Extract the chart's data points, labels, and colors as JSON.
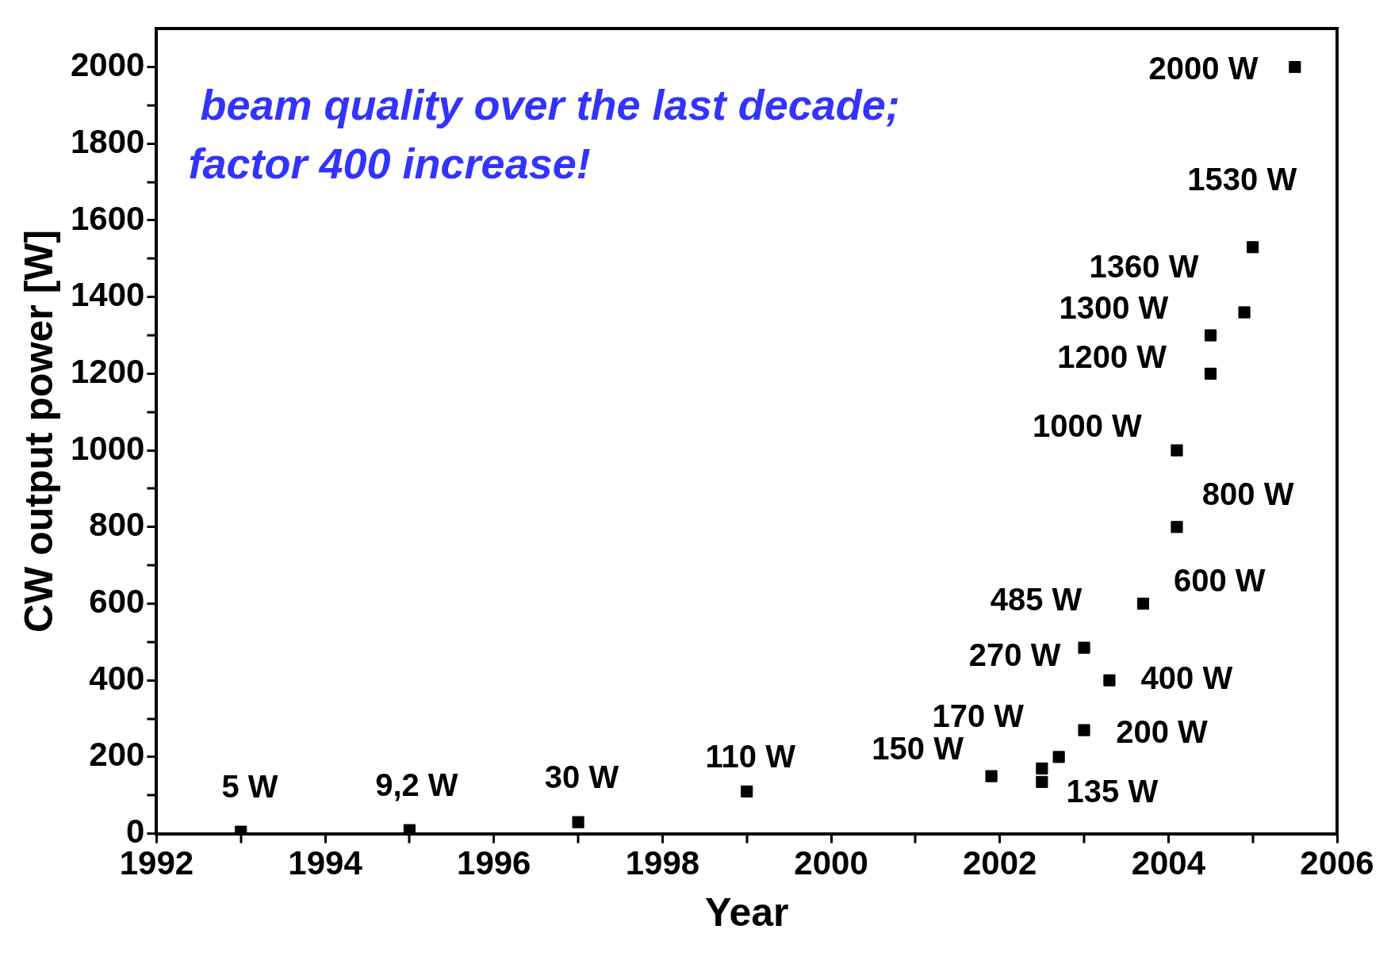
{
  "chart_data": {
    "type": "scatter",
    "xlabel": "Year",
    "ylabel": "CW output power [W]",
    "annotations": [
      " beam quality over the last decade;",
      "factor 400 increase!"
    ],
    "x": [
      1993,
      1995,
      1997,
      1999,
      2001.9,
      2002.5,
      2002.5,
      2002.7,
      2003,
      2003,
      2003.3,
      2003.7,
      2004.1,
      2004.1,
      2004.5,
      2004.5,
      2004.9,
      2005,
      2005.5
    ],
    "values": [
      5,
      9.2,
      30,
      110,
      150,
      170,
      135,
      200,
      270,
      485,
      400,
      600,
      800,
      1000,
      1200,
      1300,
      1360,
      1530,
      2000
    ],
    "value_labels": [
      "5 W",
      "9,2 W",
      "30 W",
      "110 W",
      "150 W",
      "170 W",
      "135 W",
      "200 W",
      "270 W",
      "485 W",
      "400 W",
      "600 W",
      "800 W",
      "1000 W",
      "1200 W",
      "1300 W",
      "1360 W",
      "1530 W",
      "2000 W"
    ],
    "color": "#000000",
    "marker": "square",
    "grid": false,
    "legend": false,
    "xlim": [
      1992,
      2006
    ],
    "xticks": [
      1992,
      {
        "value": 1993,
        "label": null
      },
      1994,
      {
        "value": 1995,
        "label": null
      },
      1996,
      {
        "value": 1997,
        "label": null
      },
      1998,
      {
        "value": 1999,
        "label": null
      },
      2000,
      {
        "value": 2001,
        "label": null
      },
      2002,
      {
        "value": 2003,
        "label": null
      },
      2004,
      {
        "value": 2005,
        "label": null
      },
      2006
    ],
    "ylim": [
      0,
      2100
    ],
    "yticks": [
      0,
      {
        "value": 100,
        "label": null
      },
      200,
      {
        "value": 300,
        "label": null
      },
      400,
      {
        "value": 500,
        "label": null
      },
      600,
      {
        "value": 700,
        "label": null
      },
      800,
      {
        "value": 900,
        "label": null
      },
      1000,
      {
        "value": 1100,
        "label": null
      },
      1200,
      {
        "value": 1300,
        "label": null
      },
      1400,
      {
        "value": 1500,
        "label": null
      },
      1600,
      {
        "value": 1700,
        "label": null
      },
      1800,
      {
        "value": 1900,
        "label": null
      },
      2000
    ]
  }
}
